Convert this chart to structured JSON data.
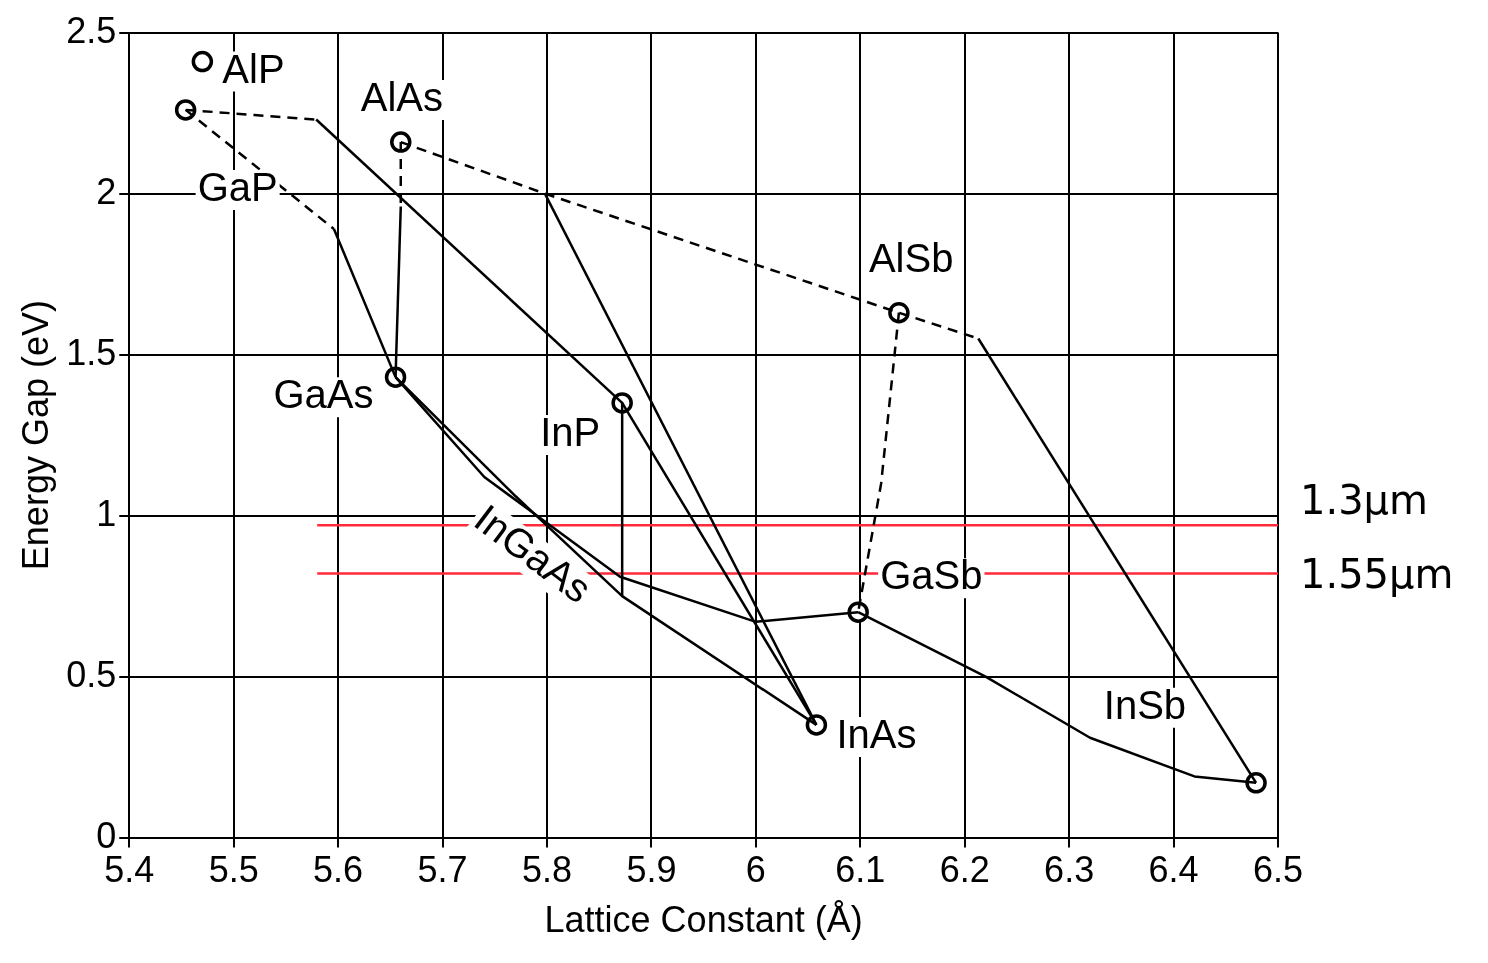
{
  "chart_data": {
    "type": "line",
    "xlabel": "Lattice Constant (Å)",
    "ylabel": "Energy Gap (eV)",
    "xlim": [
      5.4,
      6.5
    ],
    "xticks": [
      5.4,
      5.5,
      5.6,
      5.7,
      5.8,
      5.9,
      6,
      6.1,
      6.2,
      6.3,
      6.4,
      6.5
    ],
    "ylim": [
      0,
      2.5
    ],
    "yticks": [
      0,
      0.5,
      1,
      1.5,
      2,
      2.5
    ],
    "grid": true,
    "series": [
      {
        "type": "line",
        "x": [
          5.454,
          5.579
        ],
        "values": [
          2.26,
          2.23
        ],
        "color": "#000000",
        "line_style": "dashed"
      },
      {
        "type": "line",
        "x": [
          5.579,
          5.872
        ],
        "values": [
          2.23,
          1.35
        ],
        "color": "#000000",
        "line_style": "solid"
      },
      {
        "type": "line",
        "x": [
          5.454,
          5.596
        ],
        "values": [
          2.26,
          1.89
        ],
        "color": "#000000",
        "line_style": "dashed"
      },
      {
        "type": "line",
        "x": [
          5.596,
          5.655
        ],
        "values": [
          1.89,
          1.43
        ],
        "color": "#000000",
        "line_style": "solid"
      },
      {
        "type": "line",
        "x": [
          5.66,
          5.66
        ],
        "values": [
          2.16,
          1.96
        ],
        "color": "#000000",
        "line_style": "dashed"
      },
      {
        "type": "line",
        "x": [
          5.66,
          5.655
        ],
        "values": [
          1.96,
          1.43
        ],
        "color": "#000000",
        "line_style": "solid"
      },
      {
        "type": "line",
        "x": [
          5.66,
          5.798,
          6.137,
          6.213
        ],
        "values": [
          2.16,
          2.0,
          1.63,
          1.55
        ],
        "color": "#000000",
        "line_style": "dashed"
      },
      {
        "type": "line",
        "x": [
          5.798,
          6.058
        ],
        "values": [
          2.0,
          0.35
        ],
        "color": "#000000",
        "line_style": "solid"
      },
      {
        "type": "line",
        "x": [
          6.213,
          6.479
        ],
        "values": [
          1.55,
          0.17
        ],
        "color": "#000000",
        "line_style": "solid"
      },
      {
        "type": "line",
        "x": [
          6.137,
          6.12,
          6.098
        ],
        "values": [
          1.63,
          1.1,
          0.7
        ],
        "color": "#000000",
        "line_style": "dashed"
      },
      {
        "type": "line",
        "x": [
          6.098,
          6.22,
          6.32,
          6.42,
          6.479
        ],
        "values": [
          0.7,
          0.5,
          0.31,
          0.19,
          0.17
        ],
        "color": "#000000",
        "line_style": "solid"
      },
      {
        "type": "line",
        "x": [
          5.655,
          5.74,
          5.87,
          6.0,
          6.098
        ],
        "values": [
          1.43,
          1.12,
          0.81,
          0.67,
          0.7
        ],
        "color": "#000000",
        "line_style": "solid"
      },
      {
        "type": "line",
        "x": [
          5.655,
          5.77,
          5.872,
          6.058
        ],
        "values": [
          1.43,
          1.06,
          0.75,
          0.35
        ],
        "color": "#000000",
        "line_style": "solid"
      },
      {
        "type": "line",
        "x": [
          5.872,
          5.872
        ],
        "values": [
          1.35,
          0.75
        ],
        "color": "#000000",
        "line_style": "solid"
      },
      {
        "type": "line",
        "x": [
          5.872,
          6.058
        ],
        "values": [
          1.35,
          0.35
        ],
        "color": "#000000",
        "line_style": "solid"
      },
      {
        "type": "line",
        "name": "1.3μm",
        "x": [
          5.58,
          6.5
        ],
        "values": [
          0.97,
          0.97
        ],
        "color": "#ff2a3a",
        "line_style": "solid"
      },
      {
        "type": "line",
        "name": "1.55μm",
        "x": [
          5.58,
          6.5
        ],
        "values": [
          0.82,
          0.82
        ],
        "color": "#ff2a3a",
        "line_style": "solid"
      },
      {
        "type": "scatter",
        "x": [
          5.47,
          5.454,
          5.66,
          5.655,
          5.872,
          6.137,
          6.098,
          6.058,
          6.479
        ],
        "values": [
          2.41,
          2.26,
          2.16,
          1.43,
          1.35,
          1.63,
          0.7,
          0.35,
          0.17
        ],
        "color": "#000000",
        "marker": "circle"
      }
    ],
    "annotations": [
      {
        "text": "AlP",
        "x": 5.47,
        "y": 2.41
      },
      {
        "text": "GaP",
        "x": 5.454,
        "y": 2.26
      },
      {
        "text": "AlAs",
        "x": 5.66,
        "y": 2.16
      },
      {
        "text": "GaAs",
        "x": 5.655,
        "y": 1.43
      },
      {
        "text": "InP",
        "x": 5.872,
        "y": 1.35
      },
      {
        "text": "AlSb",
        "x": 6.137,
        "y": 1.63
      },
      {
        "text": "GaSb",
        "x": 6.098,
        "y": 0.7
      },
      {
        "text": "InAs",
        "x": 6.058,
        "y": 0.35
      },
      {
        "text": "InSb",
        "x": 6.479,
        "y": 0.17
      },
      "InGaAs"
    ]
  }
}
